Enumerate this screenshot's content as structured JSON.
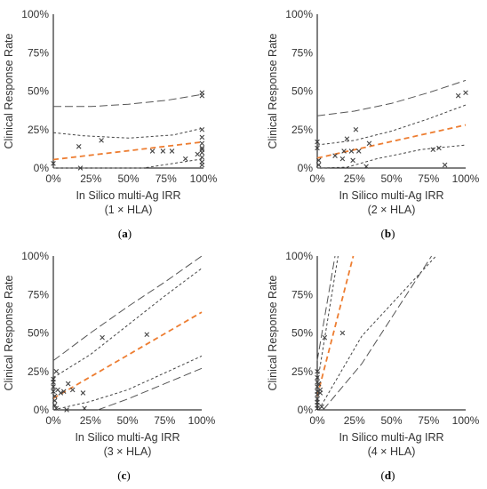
{
  "colors": {
    "trend": "#ED7D31",
    "ci_outer": "#555555",
    "ci_inner": "#444444",
    "marker": "#444444"
  },
  "chart_data": [
    {
      "type": "scatter",
      "panel_label": "(a)",
      "ylabel": "Clinical Response Rate",
      "xlabel": "In Silico multi-Ag IRR",
      "xlabel_sub": "(1 × HLA)",
      "x_ticks": [
        "0%",
        "25%",
        "50%",
        "75%",
        "100%"
      ],
      "y_ticks": [
        "0%",
        "25%",
        "50%",
        "75%",
        "100%"
      ],
      "xlim": [
        0,
        1
      ],
      "ylim": [
        0,
        1
      ],
      "points": [
        [
          0,
          0.03
        ],
        [
          0.17,
          0.14
        ],
        [
          0.18,
          0
        ],
        [
          0.32,
          0.18
        ],
        [
          0.66,
          0.11
        ],
        [
          0.73,
          0.11
        ],
        [
          0.79,
          0.11
        ],
        [
          0.88,
          0.06
        ],
        [
          0.96,
          0.09
        ],
        [
          0.99,
          0.49
        ],
        [
          0.99,
          0.47
        ],
        [
          0.99,
          0.25
        ],
        [
          0.99,
          0.2
        ],
        [
          0.99,
          0.16
        ],
        [
          0.99,
          0.13
        ],
        [
          0.99,
          0.12
        ],
        [
          0.99,
          0.1
        ],
        [
          0.99,
          0.07
        ],
        [
          0.99,
          0.04
        ],
        [
          0.99,
          0.02
        ]
      ],
      "trend": {
        "intercept": 0.055,
        "slope": 0.115
      },
      "ci_inner": {
        "lower": [
          [
            0,
            0
          ],
          [
            0.3,
            0
          ],
          [
            0.6,
            0
          ],
          [
            1,
            0.06
          ]
        ],
        "upper": [
          [
            0,
            0.23
          ],
          [
            0.2,
            0.21
          ],
          [
            0.5,
            0.195
          ],
          [
            0.8,
            0.215
          ],
          [
            1,
            0.26
          ]
        ]
      },
      "ci_outer": {
        "upper": [
          [
            0,
            0.4
          ],
          [
            0.25,
            0.4
          ],
          [
            0.5,
            0.415
          ],
          [
            0.75,
            0.44
          ],
          [
            1,
            0.48
          ]
        ]
      }
    },
    {
      "type": "scatter",
      "panel_label": "(b)",
      "ylabel": "Clinical Response Rate",
      "xlabel": "In Silico multi-Ag IRR",
      "xlabel_sub": "(2 × HLA)",
      "x_ticks": [
        "0%",
        "25%",
        "50%",
        "75%",
        "100%"
      ],
      "y_ticks": [
        "0%",
        "25%",
        "50%",
        "75%",
        "100%"
      ],
      "xlim": [
        0,
        1
      ],
      "ylim": [
        0,
        1
      ],
      "points": [
        [
          0,
          0.17
        ],
        [
          0,
          0.13
        ],
        [
          0.01,
          0.05
        ],
        [
          0.01,
          0.02
        ],
        [
          0.12,
          0.08
        ],
        [
          0.17,
          0.06
        ],
        [
          0.18,
          0.11
        ],
        [
          0.2,
          0.19
        ],
        [
          0.23,
          0.11
        ],
        [
          0.24,
          0.05
        ],
        [
          0.26,
          0.25
        ],
        [
          0.28,
          0.11
        ],
        [
          0.33,
          0.01
        ],
        [
          0.35,
          0.16
        ],
        [
          0.78,
          0.12
        ],
        [
          0.82,
          0.13
        ],
        [
          0.86,
          0.02
        ],
        [
          0.95,
          0.47
        ],
        [
          1,
          0.49
        ]
      ],
      "trend": {
        "intercept": 0.065,
        "slope": 0.215
      },
      "ci_inner": {
        "lower": [
          [
            0,
            0
          ],
          [
            0.2,
            0.005
          ],
          [
            0.4,
            0.06
          ],
          [
            0.7,
            0.12
          ],
          [
            1,
            0.15
          ]
        ],
        "upper": [
          [
            0,
            0.15
          ],
          [
            0.25,
            0.18
          ],
          [
            0.5,
            0.24
          ],
          [
            0.75,
            0.32
          ],
          [
            1,
            0.41
          ]
        ]
      },
      "ci_outer": {
        "upper": [
          [
            0,
            0.34
          ],
          [
            0.25,
            0.37
          ],
          [
            0.5,
            0.42
          ],
          [
            0.75,
            0.49
          ],
          [
            1,
            0.57
          ]
        ]
      }
    },
    {
      "type": "scatter",
      "panel_label": "(c)",
      "ylabel": "Clinical Response Rate",
      "xlabel": "In Silico multi-Ag IRR",
      "xlabel_sub": "(3 × HLA)",
      "x_ticks": [
        "0%",
        "25%",
        "50%",
        "75%",
        "100%"
      ],
      "y_ticks": [
        "0%",
        "25%",
        "50%",
        "75%",
        "100%"
      ],
      "xlim": [
        0,
        1
      ],
      "ylim": [
        0,
        1
      ],
      "points": [
        [
          0,
          0.2
        ],
        [
          0,
          0.18
        ],
        [
          0,
          0.15
        ],
        [
          0,
          0.12
        ],
        [
          0.01,
          0.09
        ],
        [
          0.01,
          0.06
        ],
        [
          0.01,
          0.03
        ],
        [
          0.02,
          0.01
        ],
        [
          0.02,
          0.25
        ],
        [
          0.03,
          0.13
        ],
        [
          0.05,
          0.11
        ],
        [
          0.07,
          0.12
        ],
        [
          0.09,
          0
        ],
        [
          0.1,
          0.17
        ],
        [
          0.13,
          0.13
        ],
        [
          0.2,
          0.11
        ],
        [
          0.21,
          0.01
        ],
        [
          0.33,
          0.47
        ],
        [
          0.63,
          0.49
        ]
      ],
      "trend": {
        "intercept": 0.075,
        "slope": 0.56
      },
      "ci_inner": {
        "lower": [
          [
            0,
            0
          ],
          [
            0.25,
            0.055
          ],
          [
            0.5,
            0.13
          ],
          [
            0.75,
            0.24
          ],
          [
            1,
            0.35
          ]
        ],
        "upper": [
          [
            0,
            0.21
          ],
          [
            0.25,
            0.36
          ],
          [
            0.5,
            0.55
          ],
          [
            0.75,
            0.74
          ],
          [
            1,
            0.92
          ]
        ]
      },
      "ci_outer": {
        "lower": [
          [
            0.3,
            0
          ],
          [
            0.5,
            0.07
          ],
          [
            0.75,
            0.17
          ],
          [
            1,
            0.27
          ]
        ],
        "upper": [
          [
            0,
            0.32
          ],
          [
            0.25,
            0.5
          ],
          [
            0.5,
            0.67
          ],
          [
            0.75,
            0.83
          ],
          [
            1,
            1
          ]
        ]
      }
    },
    {
      "type": "scatter",
      "panel_label": "(d)",
      "ylabel": "Clinical Response Rate",
      "xlabel": "In Silico multi-Ag IRR",
      "xlabel_sub": "(4 × HLA)",
      "x_ticks": [
        "0%",
        "25%",
        "50%",
        "75%",
        "100%"
      ],
      "y_ticks": [
        "0%",
        "25%",
        "50%",
        "75%",
        "100%"
      ],
      "xlim": [
        0,
        1
      ],
      "ylim": [
        0,
        1
      ],
      "points": [
        [
          0,
          0.25
        ],
        [
          0,
          0.21
        ],
        [
          0,
          0.18
        ],
        [
          0,
          0.15
        ],
        [
          0,
          0.12
        ],
        [
          0,
          0.1
        ],
        [
          0,
          0.07
        ],
        [
          0,
          0.05
        ],
        [
          0,
          0.03
        ],
        [
          0,
          0.01
        ],
        [
          0.01,
          0.17
        ],
        [
          0.02,
          0.11
        ],
        [
          0.02,
          0.13
        ],
        [
          0.03,
          0.02
        ],
        [
          0.05,
          0.47
        ],
        [
          0.17,
          0.5
        ]
      ],
      "trend": {
        "intercept": 0.09,
        "slope": 3.75
      },
      "ci_inner": {
        "lower": [
          [
            0.01,
            0
          ],
          [
            0.3,
            0.48
          ],
          [
            0.8,
            1
          ]
        ],
        "upper": [
          [
            0,
            0.17
          ],
          [
            0.14,
            1
          ]
        ]
      },
      "ci_outer": {
        "lower": [
          [
            0.04,
            0
          ],
          [
            0.3,
            0.3
          ],
          [
            0.77,
            1
          ]
        ],
        "upper": [
          [
            0,
            0.32
          ],
          [
            0.12,
            1
          ]
        ]
      }
    }
  ]
}
